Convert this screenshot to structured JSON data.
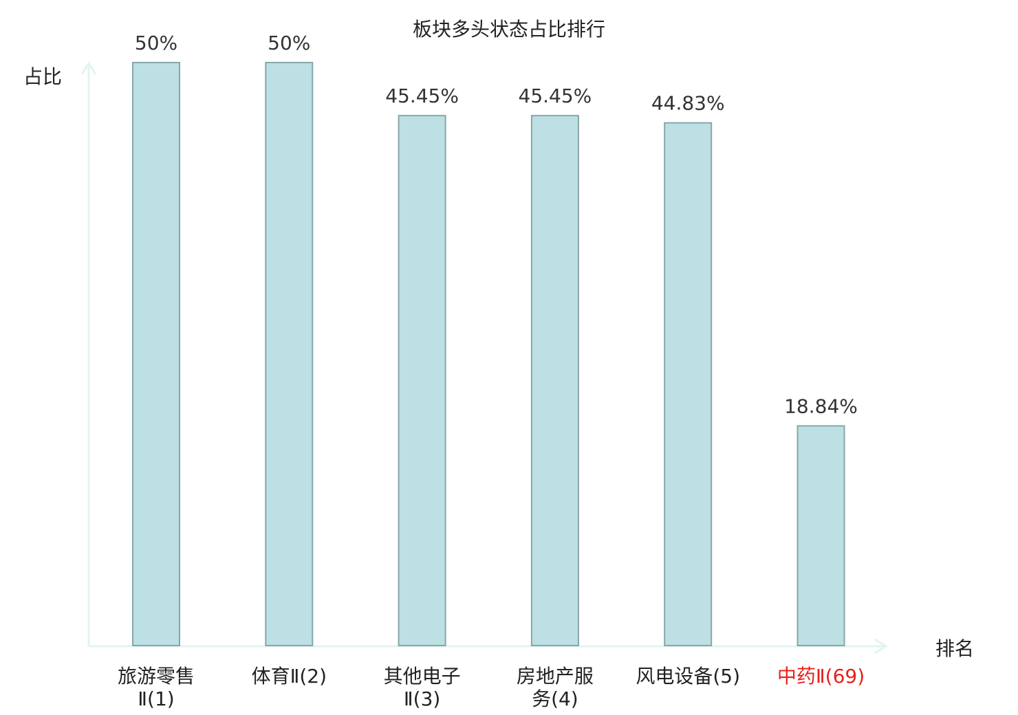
{
  "chart_data": {
    "type": "bar",
    "title": "板块多头状态占比排行",
    "ylabel": "占比",
    "xlabel": "排名",
    "ylim": [
      0,
      50
    ],
    "grid": false,
    "categories": [
      [
        "旅游零售",
        "Ⅱ(1)"
      ],
      [
        "体育Ⅱ(2)"
      ],
      [
        "其他电子",
        "Ⅱ(3)"
      ],
      [
        "房地产服",
        "务(4)"
      ],
      [
        "风电设备(5)"
      ],
      [
        "中药Ⅱ(69)"
      ]
    ],
    "values": [
      50,
      50,
      45.45,
      45.45,
      44.83,
      18.84
    ],
    "value_labels": [
      "50%",
      "50%",
      "45.45%",
      "45.45%",
      "44.83%",
      "18.84%"
    ],
    "highlight_index": 5
  },
  "colors": {
    "bar_fill": "#bce0e3",
    "bar_stroke": "#86a6a9",
    "axis": "#e2f4f1",
    "text": "#222222",
    "highlight_text": "#e8201a"
  }
}
